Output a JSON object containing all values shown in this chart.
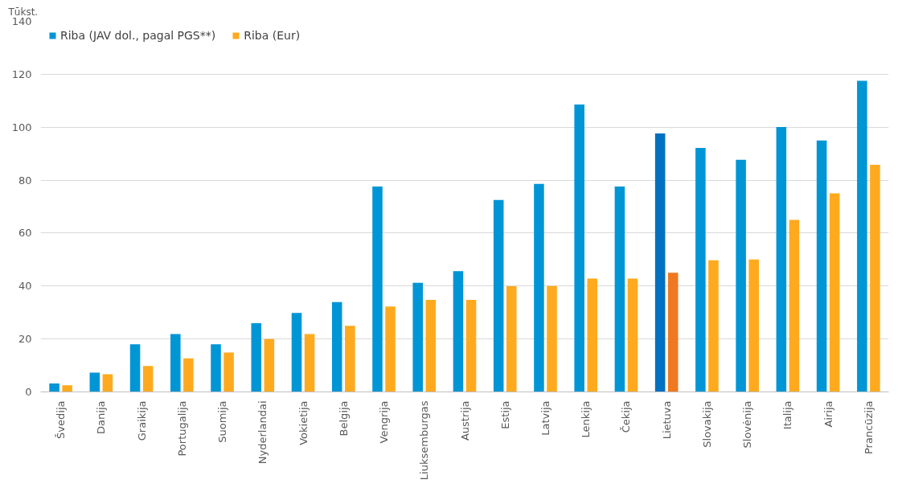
{
  "chart_data": {
    "type": "bar",
    "ylabel": "Tūkst.",
    "categories": [
      "Švedija",
      "Danija",
      "Graikija",
      "Portugalija",
      "Suomija",
      "Nyderlandai",
      "Vokietija",
      "Belgija",
      "Vengrija",
      "Liuksemburgas",
      "Austrija",
      "Estija",
      "Latvija",
      "Lenkija",
      "Čekija",
      "Lietuva",
      "Slovakija",
      "Slovėnija",
      "Italija",
      "Airija",
      "Prancūzija"
    ],
    "series": [
      {
        "name": "Riba (JAV dol., pagal PGS**)",
        "color": "#0096d6",
        "colors": [
          "#0096d6",
          "#0096d6",
          "#0096d6",
          "#0096d6",
          "#0096d6",
          "#0096d6",
          "#0096d6",
          "#0096d6",
          "#0096d6",
          "#0096d6",
          "#0096d6",
          "#0096d6",
          "#0096d6",
          "#0096d6",
          "#0096d6",
          "#0070c0",
          "#0096d6",
          "#0096d6",
          "#0096d6",
          "#0096d6",
          "#0096d6"
        ],
        "values": [
          3.2,
          7.3,
          18,
          21.9,
          18,
          26,
          29.8,
          33.9,
          77.6,
          41.2,
          45.6,
          72.5,
          78.6,
          108.6,
          77.6,
          97.6,
          92.2,
          87.7,
          100.1,
          95,
          117.5
        ]
      },
      {
        "name": "Riba (Eur)",
        "color": "#ffaa1e",
        "colors": [
          "#ffaa1e",
          "#ffaa1e",
          "#ffaa1e",
          "#ffaa1e",
          "#ffaa1e",
          "#ffaa1e",
          "#ffaa1e",
          "#ffaa1e",
          "#ffaa1e",
          "#ffaa1e",
          "#ffaa1e",
          "#ffaa1e",
          "#ffaa1e",
          "#ffaa1e",
          "#ffaa1e",
          "#f07820",
          "#ffaa1e",
          "#ffaa1e",
          "#ffaa1e",
          "#ffaa1e",
          "#ffaa1e"
        ],
        "values": [
          2.5,
          6.7,
          9.8,
          12.7,
          14.9,
          20,
          21.9,
          25,
          32.3,
          34.8,
          34.8,
          39.9,
          40,
          42.8,
          42.8,
          45,
          49.7,
          50,
          65,
          75,
          85.8
        ]
      }
    ],
    "ylim": [
      0,
      140
    ],
    "yticks": [
      0,
      20,
      40,
      60,
      80,
      100,
      120,
      140
    ],
    "grid": "y",
    "legend": "top left"
  }
}
